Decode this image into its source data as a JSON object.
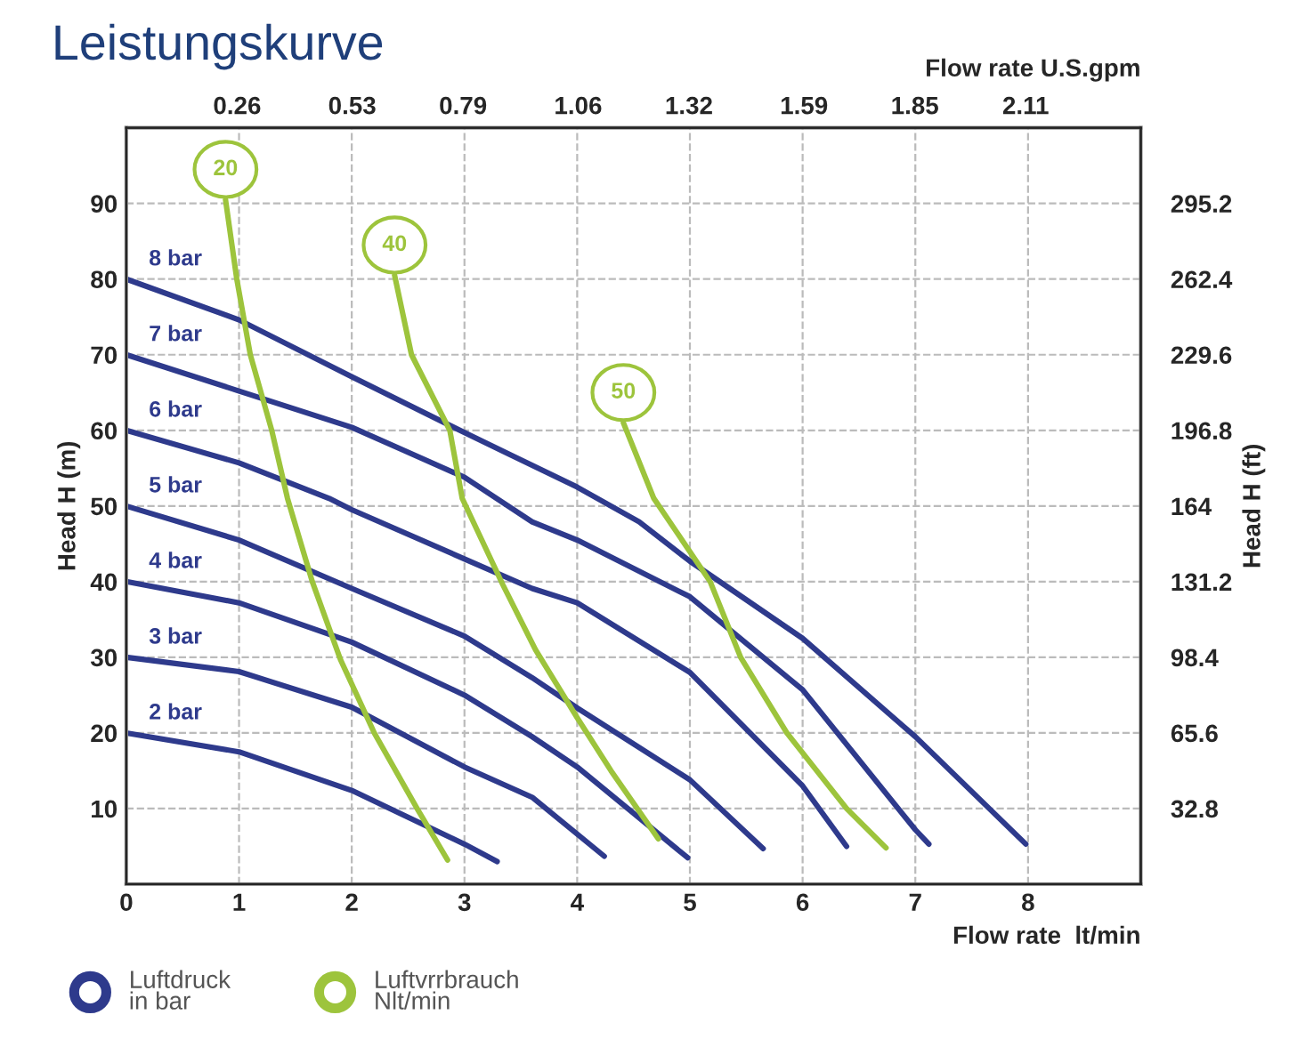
{
  "chart_data": {
    "type": "line",
    "title": "Leistungskurve",
    "xlabel": "Flow rate  lt/min",
    "x2label": "Flow rate U.S.gpm",
    "ylabel": "Head H (m)",
    "y2label": "Head H (ft)",
    "xlim": [
      0,
      9
    ],
    "xticks": [
      0,
      1,
      2,
      3,
      4,
      5,
      6,
      7,
      8
    ],
    "ylim": [
      0,
      100
    ],
    "yticks": [
      10,
      20,
      30,
      40,
      50,
      60,
      70,
      80,
      90
    ],
    "x2lim": [
      0,
      2.38
    ],
    "x2ticks": [
      0.26,
      0.53,
      0.79,
      1.06,
      1.32,
      1.59,
      1.85,
      2.11
    ],
    "y2lim": [
      0,
      328
    ],
    "y2ticks": [
      32.8,
      65.6,
      98.4,
      131.2,
      164,
      196.8,
      229.6,
      262.4,
      295.2
    ],
    "grid": true,
    "line_style": "solid",
    "marker": "none",
    "annotations": [
      "Luftdruck\nin bar",
      "Luftvrrbrauch\nNlt/min"
    ],
    "series": [
      {
        "name": "8 bar",
        "color": "#2e3a8c",
        "x": [
          0,
          1,
          2,
          3,
          4,
          4.55,
          5,
          6,
          7,
          7.98
        ],
        "values": [
          80,
          74.6,
          67.1,
          59.7,
          52.5,
          47.9,
          42.7,
          32.5,
          19.5,
          5.3
        ]
      },
      {
        "name": "7 bar",
        "color": "#2e3a8c",
        "x": [
          0,
          1,
          2,
          3,
          3.6,
          4,
          5,
          6,
          7,
          7.12
        ],
        "values": [
          70,
          65.2,
          60.4,
          53.8,
          47.9,
          45.5,
          38,
          25.7,
          7.2,
          5.3
        ]
      },
      {
        "name": "6 bar",
        "color": "#2e3a8c",
        "x": [
          0,
          1,
          1.8,
          2,
          3,
          3.6,
          4,
          5,
          6,
          6.39
        ],
        "values": [
          60,
          55.7,
          51,
          49.5,
          43,
          39.1,
          37.2,
          28,
          13,
          5
        ]
      },
      {
        "name": "5 bar",
        "color": "#2e3a8c",
        "x": [
          0,
          1,
          2,
          3,
          3.6,
          4,
          5,
          5.65
        ],
        "values": [
          50,
          45.5,
          39.1,
          32.8,
          27.3,
          23.3,
          13.8,
          4.7
        ]
      },
      {
        "name": "4 bar",
        "color": "#2e3a8c",
        "x": [
          0,
          1,
          2,
          3,
          3.6,
          4,
          4.98
        ],
        "values": [
          40,
          37.2,
          32,
          25,
          19.5,
          15.5,
          3.5
        ]
      },
      {
        "name": "3 bar",
        "color": "#2e3a8c",
        "x": [
          0,
          1,
          2,
          3,
          3.6,
          4.24
        ],
        "values": [
          30,
          28.1,
          23.4,
          15.5,
          11.5,
          3.7
        ]
      },
      {
        "name": "2 bar",
        "color": "#2e3a8c",
        "x": [
          0,
          1,
          2,
          3,
          3.29
        ],
        "values": [
          20,
          17.5,
          12.4,
          5.3,
          3
        ]
      },
      {
        "name": "20",
        "color": "#9dc43c",
        "x": [
          0.88,
          0.98,
          1.1,
          1.29,
          1.43,
          1.65,
          1.9,
          2.2,
          2.58,
          2.85
        ],
        "values": [
          90.5,
          80,
          70,
          60,
          51,
          40,
          29.7,
          20,
          10,
          3.2
        ]
      },
      {
        "name": "40",
        "color": "#9dc43c",
        "x": [
          2.38,
          2.53,
          2.87,
          2.98,
          3.34,
          3.63,
          4.0,
          4.3,
          4.72
        ],
        "values": [
          80.5,
          70,
          60,
          51,
          39.6,
          31,
          22,
          15,
          6
        ]
      },
      {
        "name": "50",
        "color": "#9dc43c",
        "x": [
          4.41,
          4.68,
          5.18,
          5.45,
          5.86,
          6.39,
          6.74
        ],
        "values": [
          61,
          51,
          40,
          30,
          20,
          10,
          4.8
        ]
      }
    ]
  }
}
